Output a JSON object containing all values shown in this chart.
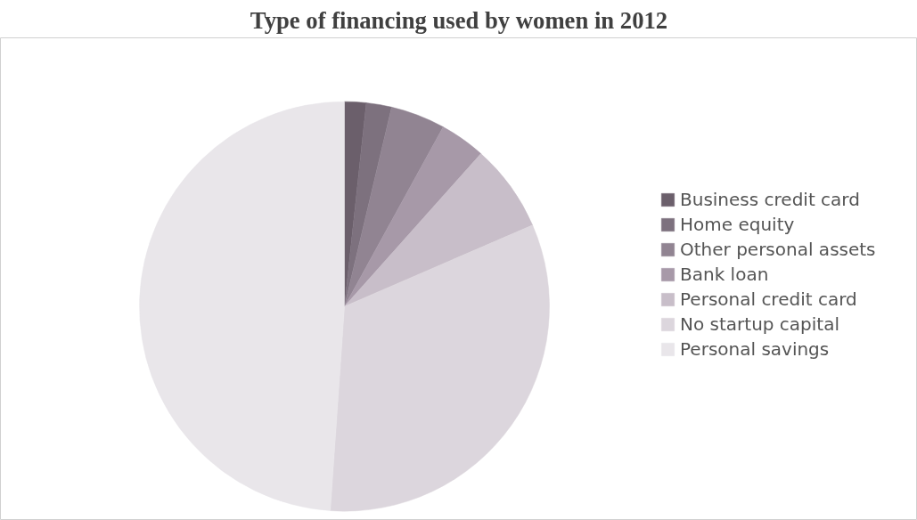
{
  "chart_data": {
    "type": "pie",
    "title": "Type of financing used by women in 2012",
    "categories": [
      "Business credit card",
      "Home equity",
      "Other personal assets",
      "Bank loan",
      "Personal credit card",
      "No startup capital",
      "Personal savings"
    ],
    "values": [
      1.7,
      2.0,
      4.3,
      3.6,
      6.9,
      32.6,
      48.9
    ],
    "colors": [
      "#6b5f6b",
      "#7d717e",
      "#918492",
      "#a799a8",
      "#c8bec9",
      "#dcd6dd",
      "#e9e6ea"
    ],
    "legend": "right"
  }
}
